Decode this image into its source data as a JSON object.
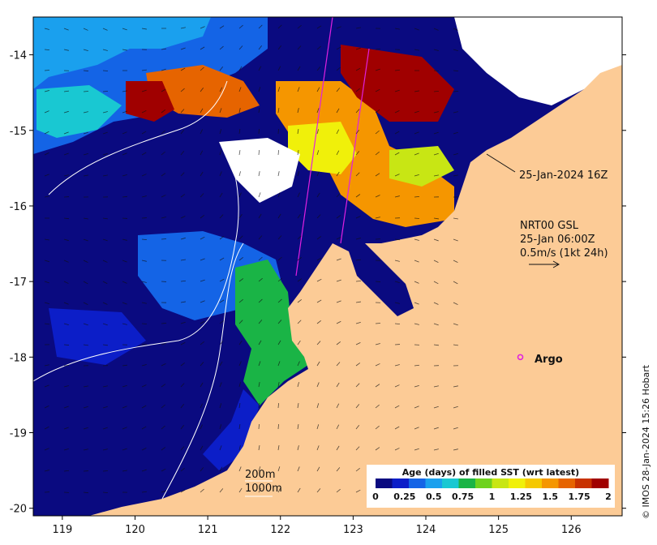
{
  "chart_data": {
    "type": "heatmap",
    "title": "",
    "xlabel": "",
    "ylabel": "",
    "x_ticks": [
      "119",
      "120",
      "121",
      "122",
      "123",
      "124",
      "125",
      "126"
    ],
    "y_ticks": [
      "-14",
      "-15",
      "-16",
      "-17",
      "-18",
      "-19",
      "-20"
    ],
    "xlim": [
      118.6,
      126.7
    ],
    "ylim": [
      -20.1,
      -13.5
    ],
    "colorbar": {
      "title": "Age (days) of filled SST (wrt latest)",
      "tick_labels": [
        "0",
        "0.25",
        "0.5",
        "0.75",
        "1",
        "1.25",
        "1.5",
        "1.75",
        "2"
      ],
      "range": [
        0,
        2
      ],
      "colors": [
        "#0a0a80",
        "#0c1ec8",
        "#1464e6",
        "#1aa0ee",
        "#19c8d2",
        "#1ab446",
        "#6ed21e",
        "#c8e614",
        "#f0f00a",
        "#f5c800",
        "#f59600",
        "#e66400",
        "#c83200",
        "#a00000"
      ]
    },
    "annotations": {
      "track_time": "25-Jan-2024 16Z",
      "current_source": "NRT00 GSL",
      "current_time": "25-Jan 06:00Z",
      "current_scale": "0.5m/s (1kt 24h)",
      "argo_label": "Argo",
      "contour_200": "200m",
      "contour_1000": "1000m"
    },
    "argo_float": {
      "lon": 125.3,
      "lat": -18.0
    },
    "land_color": "#fccb96",
    "gap_color": "#ffffff"
  },
  "credit": "© IMOS 28-Jan-2024 15:26 Hobart"
}
